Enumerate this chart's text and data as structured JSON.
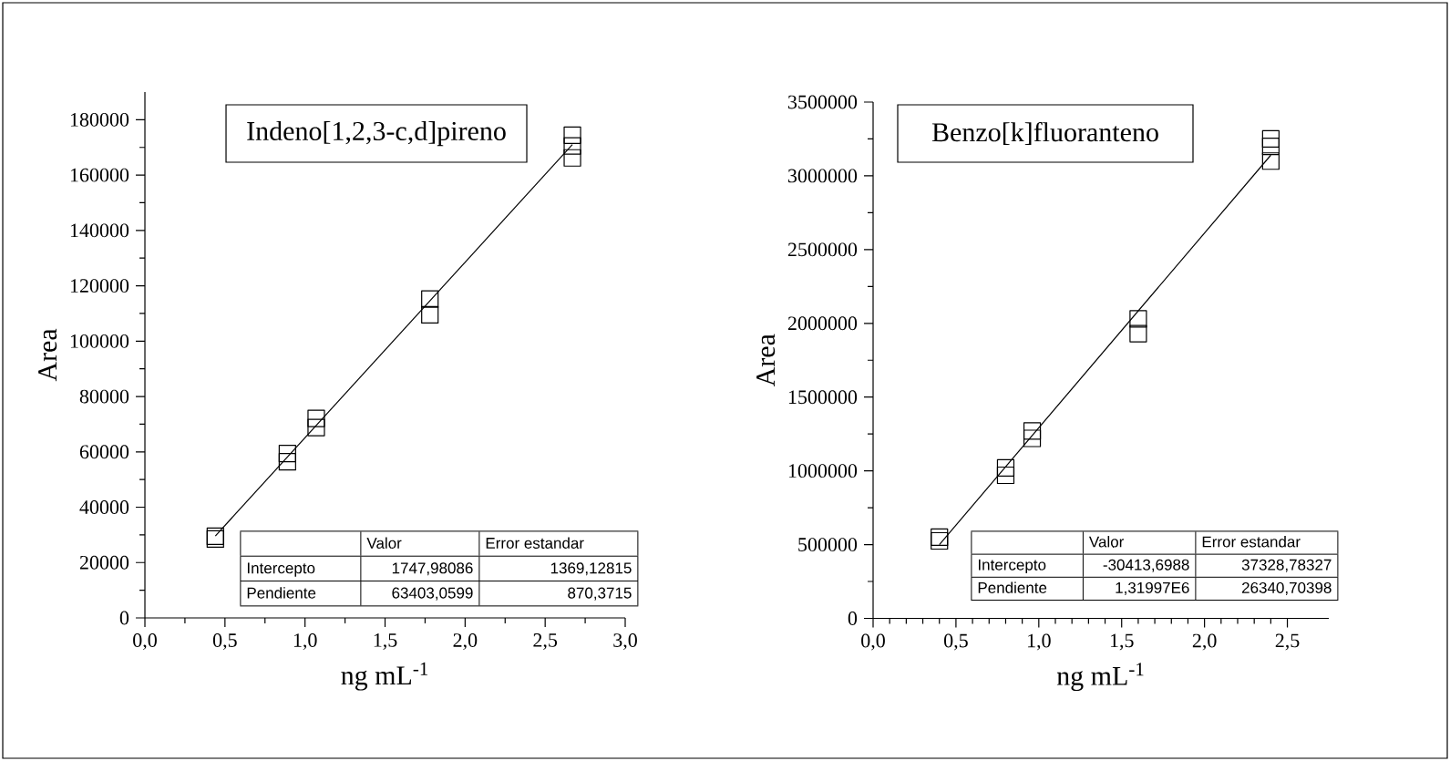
{
  "chart_data": [
    {
      "type": "scatter",
      "title": "Indeno[1,2,3-c,d]pireno",
      "xlabel": "ng mL$^{-1}$",
      "ylabel": "Area",
      "marker": "square",
      "xlim": [
        0,
        3
      ],
      "ylim": [
        0,
        190000
      ],
      "xticks": [
        {
          "value": 0,
          "label": "0,0"
        },
        {
          "value": 0.5,
          "label": "0,5"
        },
        {
          "value": 1,
          "label": "1,0"
        },
        {
          "value": 1.5,
          "label": "1,5"
        },
        {
          "value": 2,
          "label": "2,0"
        },
        {
          "value": 2.5,
          "label": "2,5"
        },
        {
          "value": 3,
          "label": "3,0"
        }
      ],
      "yticks": [
        0,
        20000,
        40000,
        60000,
        80000,
        100000,
        120000,
        140000,
        160000,
        180000
      ],
      "annotations": [
        "Valor",
        "Error estandar",
        "Intercepto",
        "1747,98086",
        "1369,12815",
        "Pendiente",
        "63403,0599",
        "870,3715"
      ],
      "series": [
        {
          "color": "#000000",
          "x": [
            0.44,
            0.44,
            0.89,
            0.89,
            1.07,
            1.07,
            1.78,
            1.78,
            2.67,
            2.67,
            2.67
          ],
          "values": [
            29500,
            28500,
            59400,
            56400,
            72100,
            68800,
            115200,
            109500,
            174400,
            170500,
            166200
          ]
        },
        {
          "type": "line",
          "marker": "none",
          "color": "#000000",
          "x": [
            0.44,
            2.67
          ],
          "values": [
            29600,
            171000
          ]
        }
      ]
    },
    {
      "type": "scatter",
      "title": "Benzo[k]fluoranteno",
      "xlabel": "ng mL$^{-1}$",
      "ylabel": "Area",
      "marker": "square",
      "xlim": [
        0,
        2.75
      ],
      "ylim": [
        0,
        3500000
      ],
      "xticks": [
        {
          "value": 0,
          "label": "0,0"
        },
        {
          "value": 0.5,
          "label": "0,5"
        },
        {
          "value": 1,
          "label": "1,0"
        },
        {
          "value": 1.5,
          "label": "1,5"
        },
        {
          "value": 2,
          "label": "2,0"
        },
        {
          "value": 2.5,
          "label": "2,5"
        }
      ],
      "yticks": [
        0,
        500000,
        1000000,
        1500000,
        2000000,
        2500000,
        3000000,
        3500000
      ],
      "annotations": [
        "Valor",
        "Error estandar",
        "Intercepto",
        "-30413,6988",
        "37328,78327",
        "Pendiente",
        "1,31997E6",
        "26340,70398"
      ],
      "series": [
        {
          "color": "#000000",
          "x": [
            0.4,
            0.4,
            0.8,
            0.8,
            0.96,
            0.96,
            1.6,
            1.6,
            2.4,
            2.4,
            2.4
          ],
          "values": [
            550000,
            525000,
            1020000,
            970000,
            1270000,
            1220000,
            2030000,
            1930000,
            3250000,
            3200000,
            3100000
          ]
        },
        {
          "type": "line",
          "marker": "none",
          "color": "#000000",
          "x": [
            0.4,
            2.4
          ],
          "values": [
            500000,
            3140000
          ]
        }
      ]
    }
  ]
}
